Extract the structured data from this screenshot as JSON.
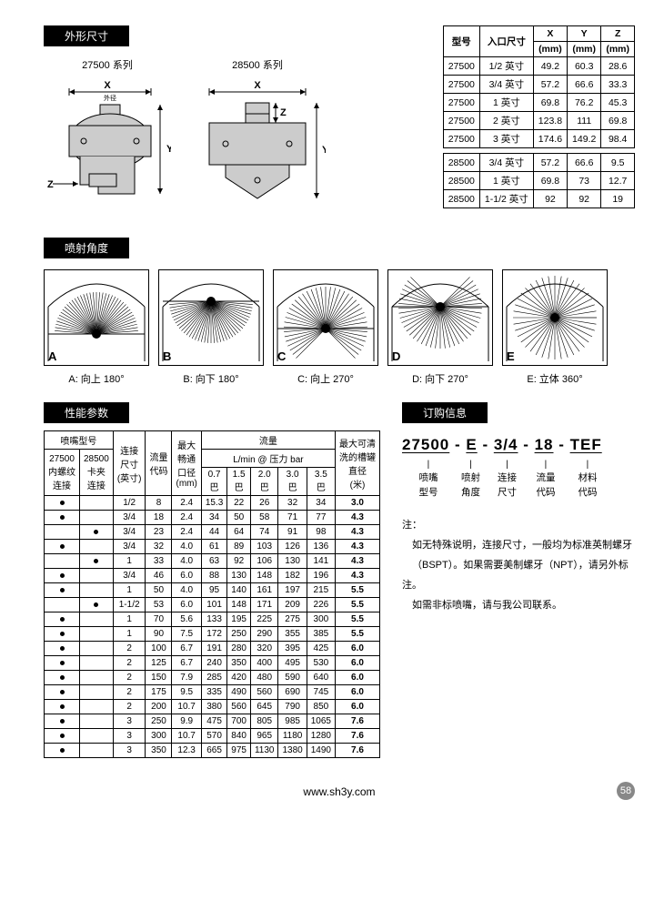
{
  "sections": {
    "dimensions": "外形尺寸",
    "spray_angle": "喷射角度",
    "performance": "性能参数",
    "order": "订购信息"
  },
  "series_labels": {
    "s27500": "27500 系列",
    "s28500": "28500 系列"
  },
  "dim_table": {
    "headers": [
      "型号",
      "入口尺寸",
      "X\n(mm)",
      "Y\n(mm)",
      "Z\n(mm)"
    ],
    "rows1": [
      [
        "27500",
        "1/2 英寸",
        "49.2",
        "60.3",
        "28.6"
      ],
      [
        "27500",
        "3/4 英寸",
        "57.2",
        "66.6",
        "33.3"
      ],
      [
        "27500",
        "1 英寸",
        "69.8",
        "76.2",
        "45.3"
      ],
      [
        "27500",
        "2 英寸",
        "123.8",
        "111",
        "69.8"
      ],
      [
        "27500",
        "3 英寸",
        "174.6",
        "149.2",
        "98.4"
      ]
    ],
    "rows2": [
      [
        "28500",
        "3/4 英寸",
        "57.2",
        "66.6",
        "9.5"
      ],
      [
        "28500",
        "1 英寸",
        "69.8",
        "73",
        "12.7"
      ],
      [
        "28500",
        "1-1/2 英寸",
        "92",
        "92",
        "19"
      ]
    ]
  },
  "spray_items": [
    {
      "letter": "A",
      "label": "A: 向上 180°"
    },
    {
      "letter": "B",
      "label": "B: 向下 180°"
    },
    {
      "letter": "C",
      "label": "C: 向上 270°"
    },
    {
      "letter": "D",
      "label": "D: 向下 270°"
    },
    {
      "letter": "E",
      "label": "E: 立体 360°"
    }
  ],
  "perf_table": {
    "h1": {
      "nozzle_model": "喷嘴型号",
      "conn_size": "连接\n尺寸\n(英寸)",
      "flow_code": "流量\n代码",
      "max_orifice": "最大\n畅通\n口径\n(mm)",
      "flow": "流量",
      "max_tank": "最大可清\n洗的槽罐\n直径\n(米)"
    },
    "h2": {
      "s27500": "27500\n内螺纹\n连接",
      "s28500": "28500\n卡夹\n连接",
      "flow_unit": "L/min  @  压力 bar"
    },
    "h3": [
      "0.7\n巴",
      "1.5\n巴",
      "2.0\n巴",
      "3.0\n巴",
      "3.5\n巴"
    ],
    "rows": [
      {
        "a": 1,
        "b": 0,
        "size": "1/2",
        "code": "8",
        "orf": "2.4",
        "f": [
          "15.3",
          "22",
          "26",
          "32",
          "34"
        ],
        "tank": "3.0"
      },
      {
        "a": 1,
        "b": 0,
        "size": "3/4",
        "code": "18",
        "orf": "2.4",
        "f": [
          "34",
          "50",
          "58",
          "71",
          "77"
        ],
        "tank": "4.3"
      },
      {
        "a": 0,
        "b": 1,
        "size": "3/4",
        "code": "23",
        "orf": "2.4",
        "f": [
          "44",
          "64",
          "74",
          "91",
          "98"
        ],
        "tank": "4.3"
      },
      {
        "a": 1,
        "b": 0,
        "size": "3/4",
        "code": "32",
        "orf": "4.0",
        "f": [
          "61",
          "89",
          "103",
          "126",
          "136"
        ],
        "tank": "4.3"
      },
      {
        "a": 0,
        "b": 1,
        "size": "1",
        "code": "33",
        "orf": "4.0",
        "f": [
          "63",
          "92",
          "106",
          "130",
          "141"
        ],
        "tank": "4.3"
      },
      {
        "a": 1,
        "b": 0,
        "size": "3/4",
        "code": "46",
        "orf": "6.0",
        "f": [
          "88",
          "130",
          "148",
          "182",
          "196"
        ],
        "tank": "4.3"
      },
      {
        "a": 1,
        "b": 0,
        "size": "1",
        "code": "50",
        "orf": "4.0",
        "f": [
          "95",
          "140",
          "161",
          "197",
          "215"
        ],
        "tank": "5.5"
      },
      {
        "a": 0,
        "b": 1,
        "size": "1-1/2",
        "code": "53",
        "orf": "6.0",
        "f": [
          "101",
          "148",
          "171",
          "209",
          "226"
        ],
        "tank": "5.5"
      },
      {
        "a": 1,
        "b": 0,
        "size": "1",
        "code": "70",
        "orf": "5.6",
        "f": [
          "133",
          "195",
          "225",
          "275",
          "300"
        ],
        "tank": "5.5"
      },
      {
        "a": 1,
        "b": 0,
        "size": "1",
        "code": "90",
        "orf": "7.5",
        "f": [
          "172",
          "250",
          "290",
          "355",
          "385"
        ],
        "tank": "5.5"
      },
      {
        "a": 1,
        "b": 0,
        "size": "2",
        "code": "100",
        "orf": "6.7",
        "f": [
          "191",
          "280",
          "320",
          "395",
          "425"
        ],
        "tank": "6.0"
      },
      {
        "a": 1,
        "b": 0,
        "size": "2",
        "code": "125",
        "orf": "6.7",
        "f": [
          "240",
          "350",
          "400",
          "495",
          "530"
        ],
        "tank": "6.0"
      },
      {
        "a": 1,
        "b": 0,
        "size": "2",
        "code": "150",
        "orf": "7.9",
        "f": [
          "285",
          "420",
          "480",
          "590",
          "640"
        ],
        "tank": "6.0"
      },
      {
        "a": 1,
        "b": 0,
        "size": "2",
        "code": "175",
        "orf": "9.5",
        "f": [
          "335",
          "490",
          "560",
          "690",
          "745"
        ],
        "tank": "6.0"
      },
      {
        "a": 1,
        "b": 0,
        "size": "2",
        "code": "200",
        "orf": "10.7",
        "f": [
          "380",
          "560",
          "645",
          "790",
          "850"
        ],
        "tank": "6.0"
      },
      {
        "a": 1,
        "b": 0,
        "size": "3",
        "code": "250",
        "orf": "9.9",
        "f": [
          "475",
          "700",
          "805",
          "985",
          "1065"
        ],
        "tank": "7.6"
      },
      {
        "a": 1,
        "b": 0,
        "size": "3",
        "code": "300",
        "orf": "10.7",
        "f": [
          "570",
          "840",
          "965",
          "1180",
          "1280"
        ],
        "tank": "7.6"
      },
      {
        "a": 1,
        "b": 0,
        "size": "3",
        "code": "350",
        "orf": "12.3",
        "f": [
          "665",
          "975",
          "1130",
          "1380",
          "1490"
        ],
        "tank": "7.6"
      }
    ]
  },
  "order": {
    "parts": [
      "27500",
      "E",
      "3/4",
      "18",
      "TEF"
    ],
    "sep": " - ",
    "labels": [
      "喷嘴\n型号",
      "喷射\n角度",
      "连接\n尺寸",
      "流量\n代码",
      "材料\n代码"
    ],
    "note_title": "注：",
    "note_lines": [
      "如无特殊说明，连接尺寸，一般均为标准英制螺牙",
      "（BSPT）。如果需要美制螺牙（NPT），请另外标注。",
      "如需非标喷嘴，请与我公司联系。"
    ]
  },
  "footer": {
    "url": "www.sh3y.com",
    "page": "58"
  }
}
